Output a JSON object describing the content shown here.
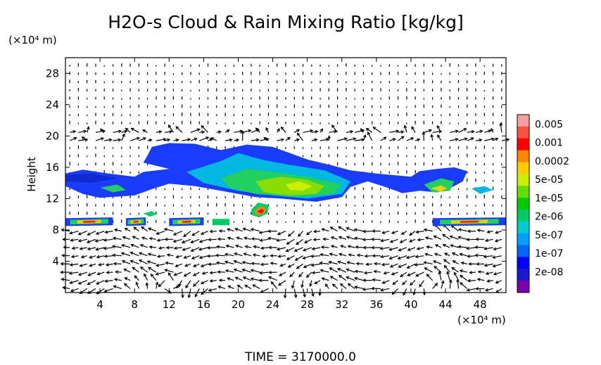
{
  "chart_data": {
    "type": "heatmap",
    "title": "H2O-s Cloud & Rain Mixing Ratio [kg/kg]",
    "y_unit": "(×10⁴ m)",
    "x_unit": "(×10⁴ m)",
    "ylabel": "Height",
    "footer": "TIME = 3170000.0",
    "xlim": [
      0,
      51
    ],
    "ylim": [
      0,
      30
    ],
    "x_ticks": [
      4,
      8,
      12,
      16,
      20,
      24,
      28,
      32,
      36,
      40,
      44,
      48
    ],
    "x_tick_labels": [
      "4",
      "8",
      "12",
      "16",
      "20",
      "24",
      "28",
      "32",
      "36",
      "40",
      "44",
      "48"
    ],
    "y_ticks": [
      4,
      8,
      12,
      16,
      20,
      24,
      28
    ],
    "y_tick_labels": [
      "4",
      "8",
      "12",
      "16",
      "20",
      "24",
      "28"
    ],
    "colorbar": {
      "labels": [
        "0.005",
        "0.001",
        "0.0002",
        "5e-05",
        "1e-05",
        "2e-06",
        "5e-07",
        "1e-07",
        "2e-08"
      ],
      "colors": [
        "#f4a0a0",
        "#ff5040",
        "#ff0000",
        "#ff8800",
        "#ffcc00",
        "#ccee00",
        "#66dd00",
        "#00cc00",
        "#00cc66",
        "#00cccc",
        "#00a0ff",
        "#0066ff",
        "#0000ff",
        "#1a1acc",
        "#7a00aa"
      ]
    },
    "cloud_regions": [
      {
        "name": "upper-cloud-layer",
        "x_range": [
          0,
          47
        ],
        "y_range": [
          11,
          19.5
        ],
        "level": "1e-07"
      },
      {
        "name": "core-cloud",
        "x_range": [
          19,
          33
        ],
        "y_range": [
          12,
          15.5
        ],
        "level": "5e-05"
      },
      {
        "name": "convective-cell",
        "x_range": [
          21.5,
          23.5
        ],
        "y_range": [
          9.5,
          11.5
        ],
        "level": "0.001"
      },
      {
        "name": "low-cloud-layer",
        "x_range": [
          0,
          51
        ],
        "y_range": [
          8.5,
          9.5
        ],
        "level": "0.0002"
      }
    ],
    "vectors": "wind vector field overlay"
  }
}
